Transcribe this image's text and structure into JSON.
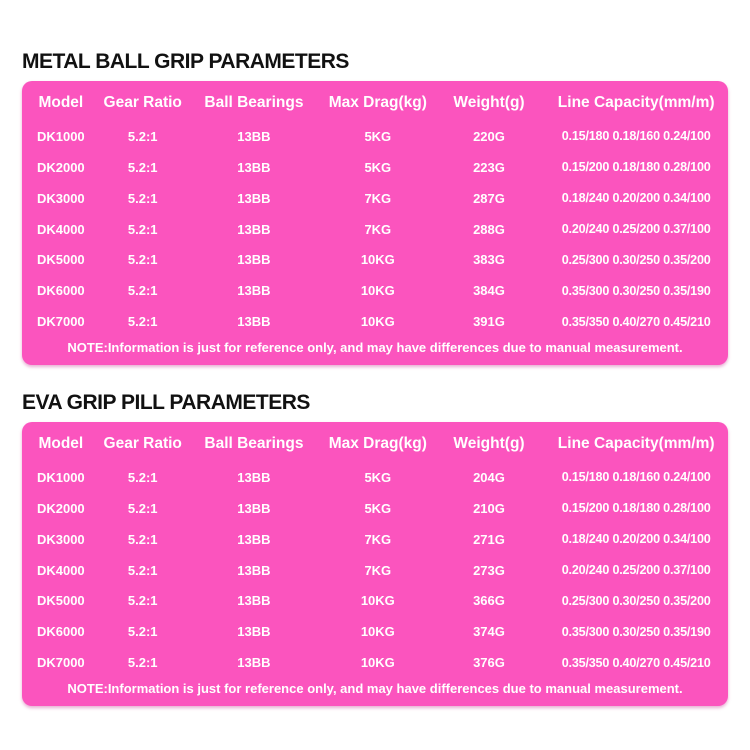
{
  "colors": {
    "table_pink": "#FB54BE",
    "text_on_pink": "#FFFFFF",
    "title_black": "#111111",
    "page_background": "#FFFFFF"
  },
  "tables": [
    {
      "title": "METAL BALL GRIP PARAMETERS",
      "columns": [
        "Model",
        "Gear Ratio",
        "Ball Bearings",
        "Max Drag(kg)",
        "Weight(g)",
        "Line Capacity(mm/m)"
      ],
      "rows": [
        [
          "DK1000",
          "5.2:1",
          "13BB",
          "5KG",
          "220G",
          "0.15/180 0.18/160 0.24/100"
        ],
        [
          "DK2000",
          "5.2:1",
          "13BB",
          "5KG",
          "223G",
          "0.15/200 0.18/180 0.28/100"
        ],
        [
          "DK3000",
          "5.2:1",
          "13BB",
          "7KG",
          "287G",
          "0.18/240 0.20/200 0.34/100"
        ],
        [
          "DK4000",
          "5.2:1",
          "13BB",
          "7KG",
          "288G",
          "0.20/240 0.25/200 0.37/100"
        ],
        [
          "DK5000",
          "5.2:1",
          "13BB",
          "10KG",
          "383G",
          "0.25/300 0.30/250 0.35/200"
        ],
        [
          "DK6000",
          "5.2:1",
          "13BB",
          "10KG",
          "384G",
          "0.35/300 0.30/250 0.35/190"
        ],
        [
          "DK7000",
          "5.2:1",
          "13BB",
          "10KG",
          "391G",
          "0.35/350 0.40/270 0.45/210"
        ]
      ],
      "note": "NOTE:Information is just for reference only, and may have differences due to manual measurement."
    },
    {
      "title": "EVA GRIP PILL PARAMETERS",
      "columns": [
        "Model",
        "Gear Ratio",
        "Ball Bearings",
        "Max Drag(kg)",
        "Weight(g)",
        "Line Capacity(mm/m)"
      ],
      "rows": [
        [
          "DK1000",
          "5.2:1",
          "13BB",
          "5KG",
          "204G",
          "0.15/180 0.18/160 0.24/100"
        ],
        [
          "DK2000",
          "5.2:1",
          "13BB",
          "5KG",
          "210G",
          "0.15/200 0.18/180 0.28/100"
        ],
        [
          "DK3000",
          "5.2:1",
          "13BB",
          "7KG",
          "271G",
          "0.18/240 0.20/200 0.34/100"
        ],
        [
          "DK4000",
          "5.2:1",
          "13BB",
          "7KG",
          "273G",
          "0.20/240 0.25/200 0.37/100"
        ],
        [
          "DK5000",
          "5.2:1",
          "13BB",
          "10KG",
          "366G",
          "0.25/300 0.30/250 0.35/200"
        ],
        [
          "DK6000",
          "5.2:1",
          "13BB",
          "10KG",
          "374G",
          "0.35/300 0.30/250 0.35/190"
        ],
        [
          "DK7000",
          "5.2:1",
          "13BB",
          "10KG",
          "376G",
          "0.35/350 0.40/270 0.45/210"
        ]
      ],
      "note": "NOTE:Information is just for reference only, and may have differences due to manual measurement."
    }
  ]
}
